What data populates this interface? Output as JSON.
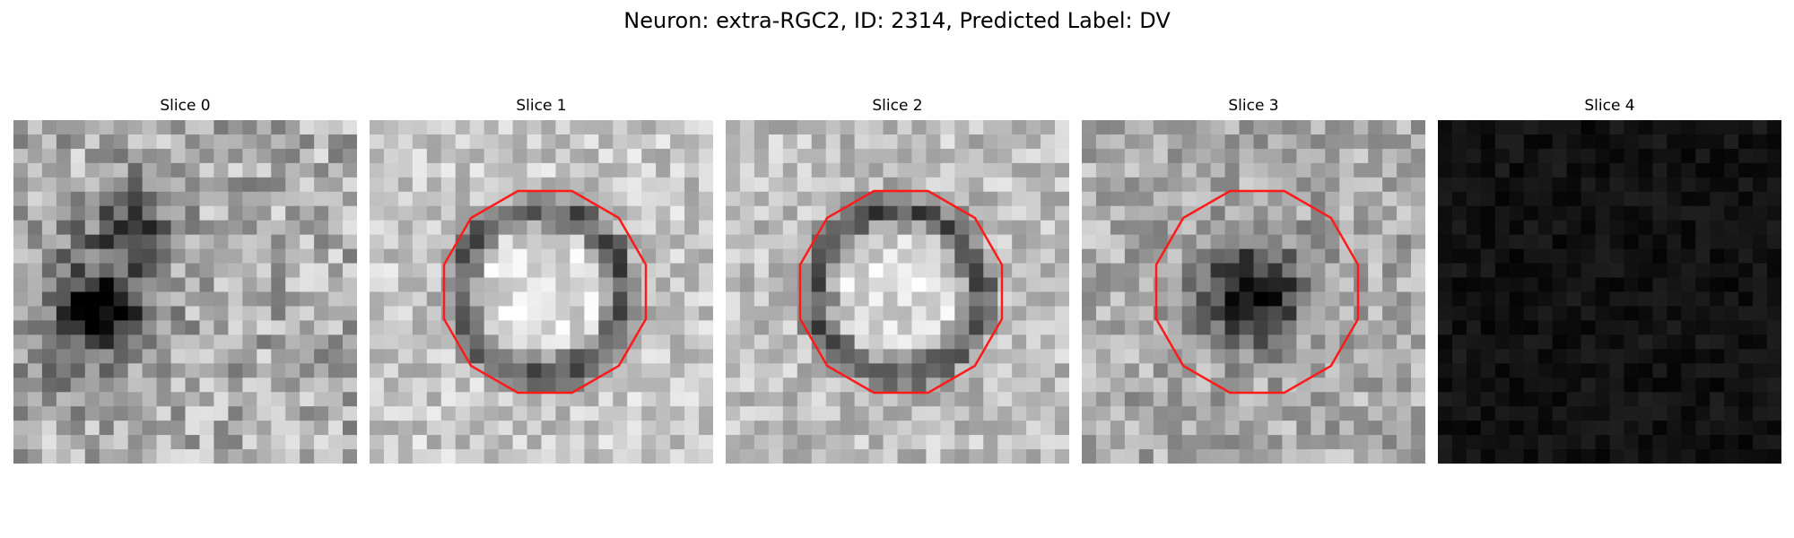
{
  "figure": {
    "title": "Neuron: extra-RGC2, ID: 2314, Predicted Label: DV"
  },
  "colors": {
    "contour": "#ff1a1a"
  },
  "panels": [
    {
      "title": "Slice 0",
      "base": 172,
      "spread": 55,
      "seed": 11,
      "dark_blobs": 3,
      "contour": false
    },
    {
      "title": "Slice 1",
      "base": 198,
      "spread": 40,
      "seed": 23,
      "dark_ring": true,
      "contour": true
    },
    {
      "title": "Slice 2",
      "base": 190,
      "spread": 40,
      "seed": 37,
      "dark_ring": true,
      "contour": true
    },
    {
      "title": "Slice 3",
      "base": 170,
      "spread": 45,
      "seed": 53,
      "dark_center": true,
      "contour": true
    },
    {
      "title": "Slice 4",
      "base": 18,
      "spread": 14,
      "seed": 71,
      "dark_blobs": 0,
      "contour": false
    }
  ]
}
